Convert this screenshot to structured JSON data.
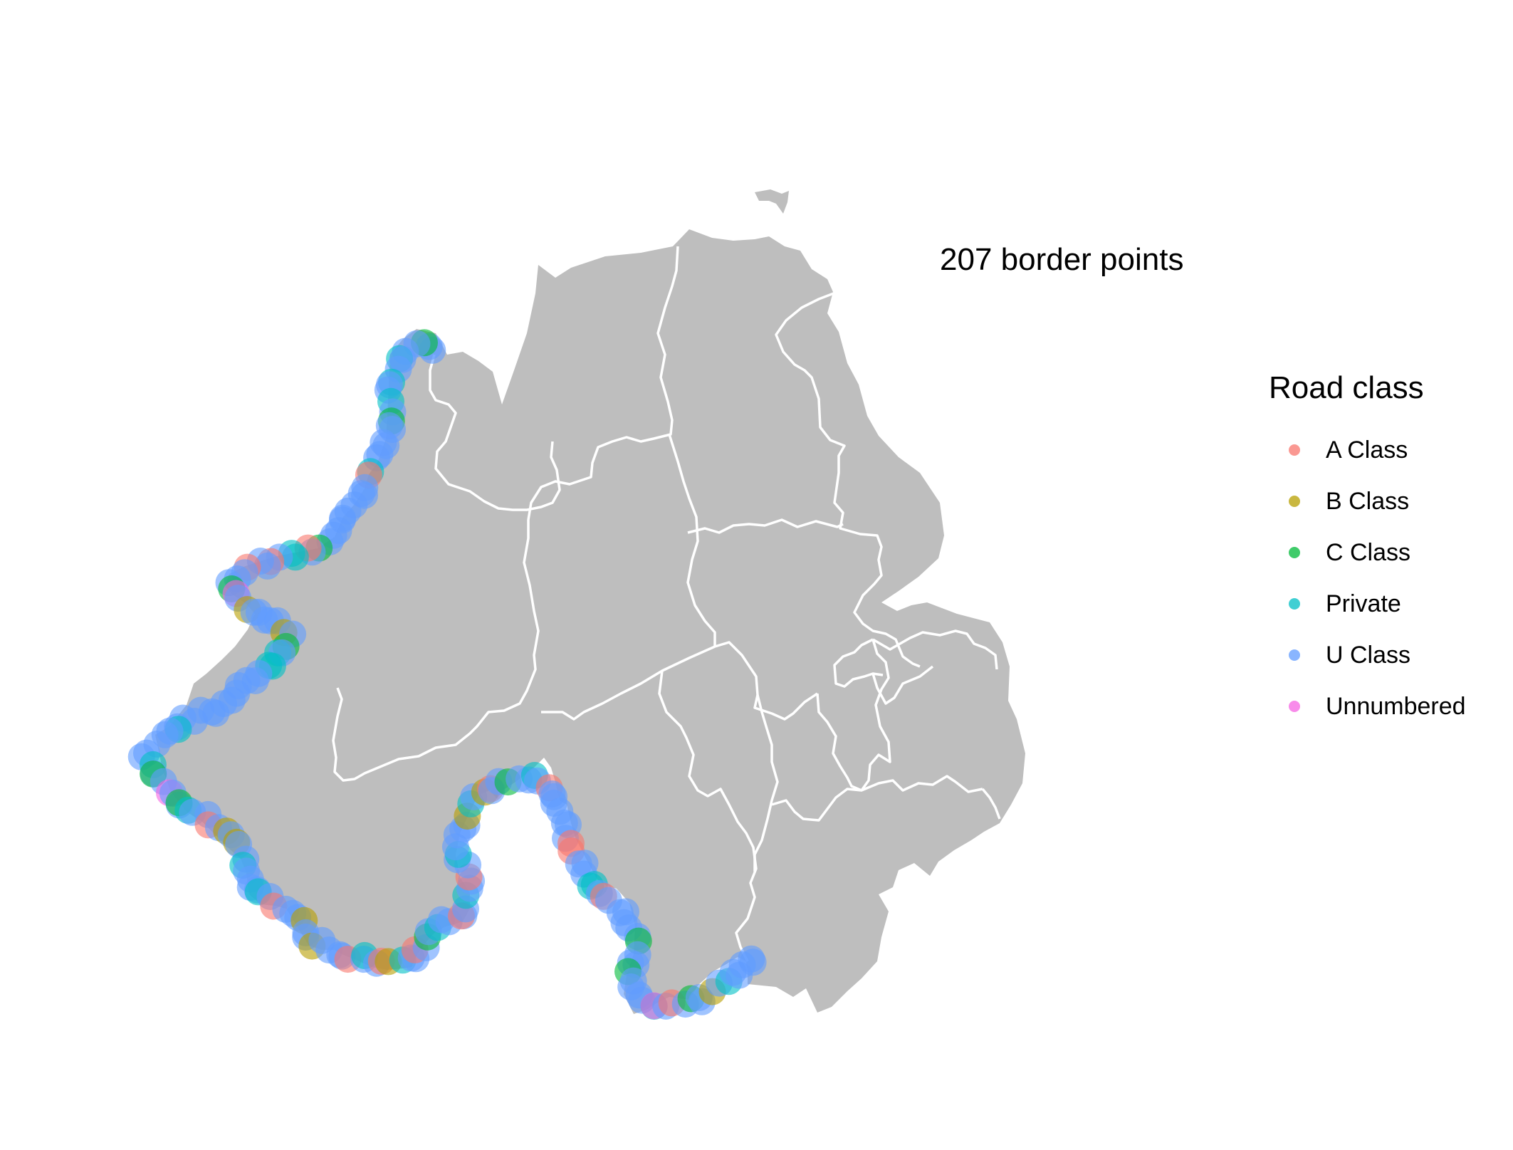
{
  "annotation": "207 border points",
  "legend": {
    "title": "Road class",
    "items": [
      {
        "label": "A Class",
        "color": "#F8766D"
      },
      {
        "label": "B Class",
        "color": "#B79F00"
      },
      {
        "label": "C Class",
        "color": "#00BA38"
      },
      {
        "label": "Private",
        "color": "#00BFC4"
      },
      {
        "label": "U Class",
        "color": "#619CFF"
      },
      {
        "label": "Unnumbered",
        "color": "#F564E3"
      }
    ]
  },
  "colors": {
    "land": "#bebebe",
    "border": "#ffffff",
    "background": "#ffffff"
  }
}
